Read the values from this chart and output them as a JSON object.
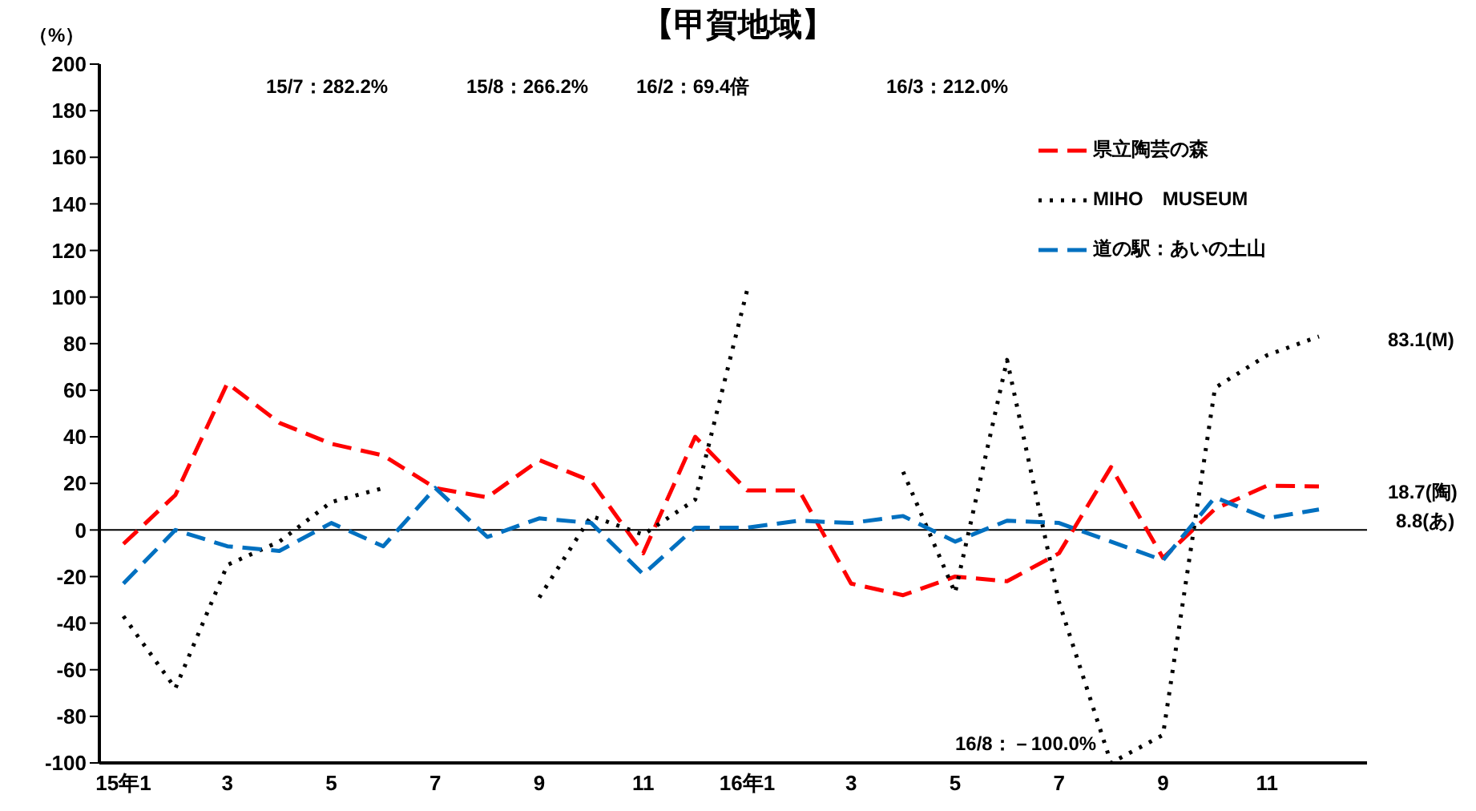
{
  "chart_data": {
    "type": "line",
    "title": "【甲賀地域】",
    "categories": [
      "15年1",
      null,
      "3",
      null,
      "5",
      null,
      "7",
      null,
      "9",
      null,
      "11",
      null,
      "16年1",
      null,
      "3",
      null,
      "5",
      null,
      "7",
      null,
      "9",
      null,
      "11",
      null
    ],
    "series": [
      {
        "name": "県立陶芸の森",
        "color": "#ff0000",
        "line_style": "dashed",
        "values": [
          -6,
          15,
          63,
          46,
          37,
          32,
          18,
          14,
          30,
          21,
          -10,
          40,
          17,
          17,
          -23,
          -28,
          -20,
          -22,
          -10,
          27,
          -12,
          9,
          19,
          18.7
        ]
      },
      {
        "name": "MIHO　MUSEUM",
        "color": "#000000",
        "line_style": "dotted",
        "values": [
          -37,
          -68,
          -15,
          -5,
          12,
          18,
          null,
          null,
          -29,
          6,
          -2,
          13,
          103,
          null,
          null,
          25,
          -27,
          73,
          -31,
          -100,
          -88,
          61,
          75,
          83.1
        ]
      },
      {
        "name": "道の駅：あいの土山",
        "color": "#0070c0",
        "line_style": "dashed",
        "values": [
          -23,
          0,
          -7,
          -9,
          3,
          -7,
          18,
          -3,
          5,
          3,
          -19,
          1,
          1,
          4,
          3,
          6,
          -5,
          4,
          3,
          -5,
          -13,
          14,
          5,
          8.8
        ]
      }
    ],
    "ylim": [
      -100,
      200
    ],
    "yticks": [
      -100,
      -80,
      -60,
      -40,
      -20,
      0,
      20,
      40,
      60,
      80,
      100,
      120,
      140,
      160,
      180,
      200
    ],
    "ref_lines": [
      {
        "axis": "y",
        "value": 0
      }
    ],
    "annotations": [
      "（%）",
      "15/7：282.2%",
      "15/8：266.2%",
      "16/2：69.4倍",
      "16/3：212.0%",
      "16/8：－100.0%",
      "83.1(M)",
      "18.7(陶)",
      "8.8(あ)"
    ],
    "legend": "top right",
    "marker": "none"
  }
}
